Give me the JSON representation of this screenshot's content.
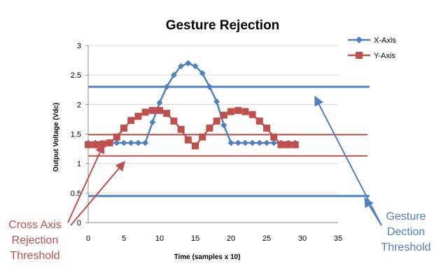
{
  "colors": {
    "x_series": "#4F81BD",
    "y_series": "#C0504D",
    "grid": "#d9d9d9",
    "axis": "#8c8c8c"
  },
  "chart_data": {
    "type": "line",
    "title": "Gesture Rejection",
    "xlabel": "Time (samples  x 10)",
    "ylabel": "Output Voltage (Vdc)",
    "xlim": [
      0,
      35
    ],
    "ylim": [
      0,
      3
    ],
    "xticks": [
      0,
      5,
      10,
      15,
      20,
      25,
      30,
      35
    ],
    "yticks": [
      0,
      0.5,
      1,
      1.5,
      2,
      2.5,
      3
    ],
    "grid": "horizontal",
    "legend_position": "top-right",
    "series": [
      {
        "name": "X-Axis",
        "marker": "diamond",
        "color": "#4F81BD",
        "x": [
          0,
          1,
          2,
          3,
          4,
          5,
          6,
          7,
          8,
          9,
          10,
          11,
          12,
          13,
          14,
          15,
          16,
          17,
          18,
          19,
          20,
          21,
          22,
          23,
          24,
          25,
          26,
          27,
          28,
          29
        ],
        "y": [
          1.35,
          1.35,
          1.35,
          1.35,
          1.35,
          1.35,
          1.35,
          1.35,
          1.35,
          1.7,
          2.03,
          2.3,
          2.5,
          2.65,
          2.7,
          2.65,
          2.53,
          2.3,
          2.05,
          1.65,
          1.35,
          1.35,
          1.35,
          1.35,
          1.35,
          1.35,
          1.35,
          1.35,
          1.35,
          1.35
        ]
      },
      {
        "name": "Y-Axis",
        "marker": "square",
        "color": "#C0504D",
        "x": [
          0,
          1,
          2,
          3,
          4,
          5,
          6,
          7,
          8,
          9,
          10,
          11,
          12,
          13,
          14,
          15,
          16,
          17,
          18,
          19,
          20,
          21,
          22,
          23,
          24,
          25,
          26,
          27,
          28,
          29
        ],
        "y": [
          1.32,
          1.32,
          1.33,
          1.35,
          1.45,
          1.6,
          1.73,
          1.8,
          1.87,
          1.9,
          1.9,
          1.85,
          1.72,
          1.58,
          1.4,
          1.3,
          1.45,
          1.6,
          1.72,
          1.82,
          1.88,
          1.9,
          1.88,
          1.83,
          1.72,
          1.6,
          1.45,
          1.32,
          1.32,
          1.32
        ]
      }
    ],
    "thresholds": [
      {
        "group": "gesture",
        "y": 2.3,
        "color": "#4F81BD"
      },
      {
        "group": "gesture",
        "y": 0.45,
        "color": "#4F81BD"
      },
      {
        "group": "cross",
        "y": 1.49,
        "color": "#C0504D"
      },
      {
        "group": "cross",
        "y": 1.13,
        "color": "#C0504D"
      }
    ],
    "annotations": [
      {
        "id": "cross",
        "lines": [
          "Cross Axis",
          "Rejection",
          "Threshold"
        ],
        "color": "#C0504D"
      },
      {
        "id": "gesture",
        "lines": [
          "Gesture",
          "Dection",
          "Threshold"
        ],
        "color": "#4F81BD"
      }
    ]
  }
}
